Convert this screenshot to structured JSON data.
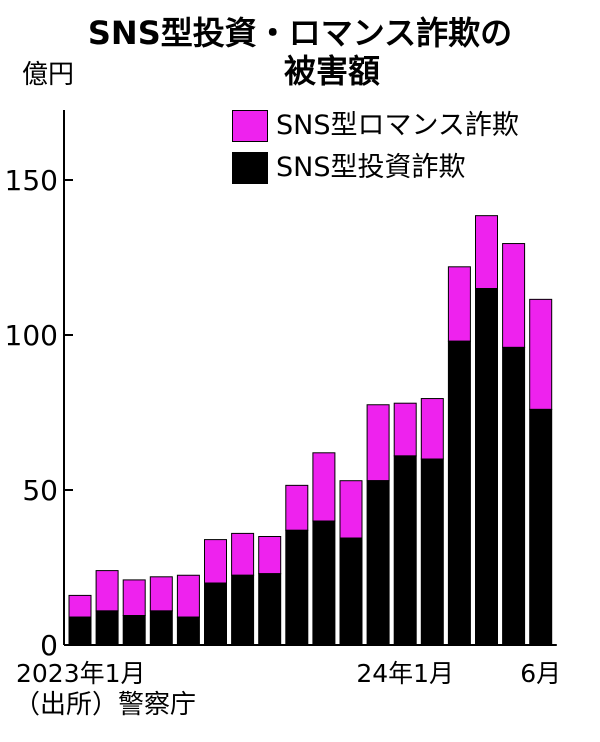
{
  "title_line1": "SNS型投資・ロマンス詐欺の",
  "title_line2": "被害額",
  "unit": "億円",
  "source": "（出所）警察庁",
  "colors": {
    "romance": "#ee22ee",
    "investment": "#000000"
  },
  "chart_data": {
    "type": "bar",
    "stacked": true,
    "title": "SNS型投資・ロマンス詐欺の被害額",
    "ylabel": "億円",
    "ylim": [
      0,
      150
    ],
    "y_ticks": [
      0,
      50,
      100,
      150
    ],
    "grid": false,
    "legend_position": "top-right",
    "categories": [
      "2023-01",
      "2023-02",
      "2023-03",
      "2023-04",
      "2023-05",
      "2023-06",
      "2023-07",
      "2023-08",
      "2023-09",
      "2023-10",
      "2023-11",
      "2023-12",
      "2024-01",
      "2024-02",
      "2024-03",
      "2024-04",
      "2024-05",
      "2024-06"
    ],
    "x_tick_labels": [
      {
        "index": 0,
        "label": "2023年1月"
      },
      {
        "index": 12,
        "label": "24年1月"
      },
      {
        "index": 17,
        "label": "6月"
      }
    ],
    "series": [
      {
        "name": "SNS型投資詐欺",
        "color": "#000000",
        "values": [
          9,
          11,
          9.5,
          11,
          9,
          20,
          22.5,
          23,
          37,
          40,
          34.5,
          53,
          61,
          60,
          98,
          115,
          96,
          76
        ]
      },
      {
        "name": "SNS型ロマンス詐欺",
        "color": "#ee22ee",
        "values": [
          7,
          13,
          11.5,
          11,
          13.5,
          14,
          13.5,
          12,
          14.5,
          22,
          18.5,
          24.5,
          17,
          19.5,
          24,
          23.5,
          33.5,
          35.5
        ]
      }
    ]
  }
}
